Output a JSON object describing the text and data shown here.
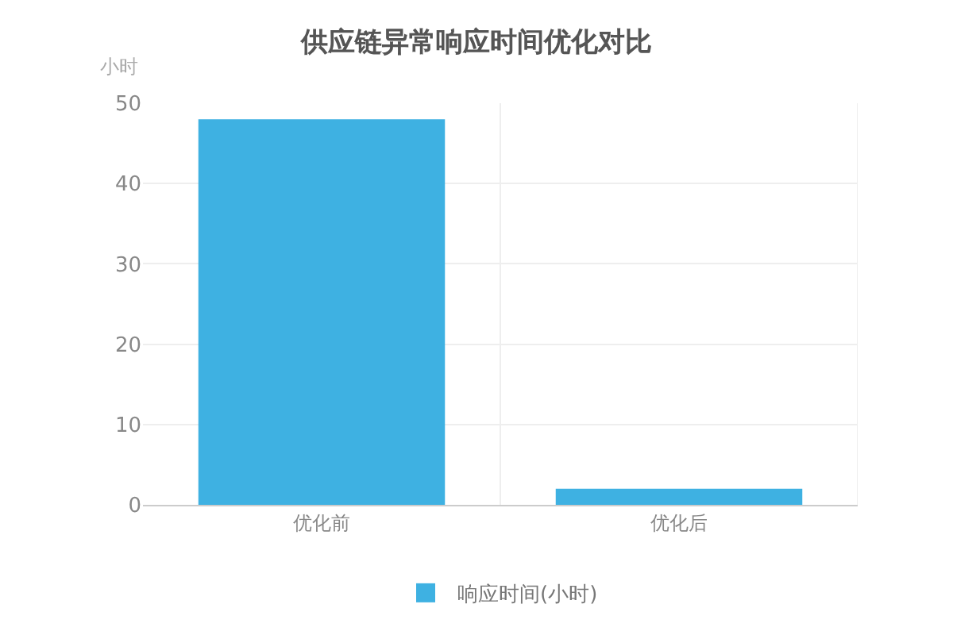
{
  "chart_data": {
    "type": "bar",
    "title": "供应链异常响应时间优化对比",
    "ylabel": "小时",
    "categories": [
      "优化前",
      "优化后"
    ],
    "series": [
      {
        "name": "响应时间(小时)",
        "color": "#3eb1e2",
        "values": [
          48,
          2
        ]
      }
    ],
    "ylim": [
      0,
      50
    ],
    "yticks": [
      0,
      10,
      20,
      30,
      40,
      50
    ],
    "grid": true,
    "legend": "bottom"
  }
}
